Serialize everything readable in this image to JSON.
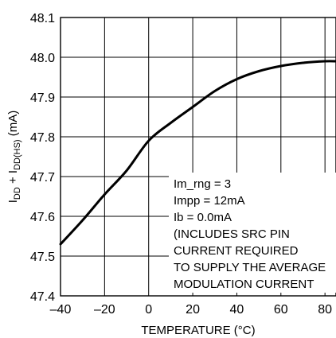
{
  "chart_data": {
    "type": "line",
    "title": "",
    "xlabel": "TEMPERATURE (°C)",
    "ylabel_parts": {
      "main1": "I",
      "sub1": "DD",
      "main2": " + I",
      "sub2": "DD(HS)",
      "main3": " (mA)"
    },
    "xlim": [
      -40,
      85
    ],
    "ylim": [
      47.4,
      48.1
    ],
    "x_ticks": [
      -40,
      -20,
      0,
      20,
      40,
      60,
      80
    ],
    "x_tick_labels": [
      "–40",
      "–20",
      "0",
      "20",
      "40",
      "60",
      "80"
    ],
    "y_ticks": [
      47.4,
      47.5,
      47.6,
      47.7,
      47.8,
      47.9,
      48.0,
      48.1
    ],
    "y_tick_labels": [
      "47.4",
      "47.5",
      "47.6",
      "47.7",
      "47.8",
      "47.9",
      "48.0",
      "48.1"
    ],
    "grid": true,
    "series": [
      {
        "x": [
          -40,
          -30,
          -20,
          -10,
          0,
          10,
          20,
          30,
          40,
          50,
          60,
          70,
          80,
          85
        ],
        "y": [
          47.53,
          47.59,
          47.655,
          47.715,
          47.79,
          47.835,
          47.875,
          47.915,
          47.945,
          47.965,
          47.978,
          47.986,
          47.99,
          47.99
        ]
      }
    ],
    "annotations": [
      "Im_rng = 3",
      "Impp = 12mA",
      "Ib = 0.0mA",
      "(INCLUDES SRC PIN",
      "CURRENT REQUIRED",
      "TO SUPPLY THE AVERAGE",
      "MODULATION CURRENT"
    ]
  }
}
